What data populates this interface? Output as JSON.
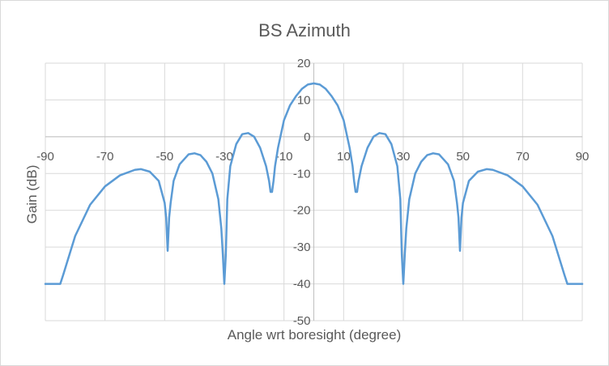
{
  "chart_data": {
    "type": "line",
    "title": "BS Azimuth",
    "xlabel": "Angle wrt boresight (degree)",
    "ylabel": "Gain (dB)",
    "xlim": [
      -90,
      90
    ],
    "ylim": [
      -50,
      20
    ],
    "x_ticks": [
      "-90",
      "-70",
      "-50",
      "-30",
      "-10",
      "10",
      "30",
      "50",
      "70",
      "90"
    ],
    "y_ticks": [
      "20",
      "10",
      "0",
      "-10",
      "-20",
      "-30",
      "-40",
      "-50"
    ],
    "grid": true,
    "legend": "none",
    "series": [
      {
        "color": "#5b9bd5",
        "x": [
          -90,
          -85,
          -84,
          -80,
          -75,
          -70,
          -65,
          -60,
          -58,
          -55,
          -52,
          -50,
          -49.5,
          -49,
          -48.5,
          -48,
          -47,
          -45,
          -42,
          -40,
          -38,
          -36,
          -34,
          -32,
          -31,
          -30.5,
          -30,
          -29.5,
          -29,
          -28,
          -26,
          -24,
          -22,
          -20,
          -18,
          -16,
          -15,
          -14.5,
          -14,
          -13.5,
          -13,
          -12,
          -10,
          -8,
          -6,
          -4,
          -2,
          0,
          2,
          4,
          6,
          8,
          10,
          12,
          13,
          13.5,
          14,
          14.5,
          15,
          16,
          18,
          20,
          22,
          24,
          26,
          28,
          29,
          29.5,
          30,
          30.5,
          31,
          32,
          34,
          36,
          38,
          40,
          42,
          45,
          47,
          48,
          48.5,
          49,
          49.5,
          50,
          52,
          55,
          58,
          60,
          65,
          70,
          75,
          80,
          84,
          85,
          90
        ],
        "y": [
          -40,
          -40,
          -37.5,
          -27,
          -18.5,
          -13.5,
          -10.5,
          -9,
          -8.8,
          -9.5,
          -12,
          -18,
          -22,
          -31,
          -22,
          -18,
          -12,
          -7.5,
          -4.8,
          -4.5,
          -5,
          -6.8,
          -10,
          -17,
          -25,
          -32,
          -40,
          -32,
          -17,
          -8,
          -2,
          0.7,
          1,
          0,
          -3,
          -8,
          -12,
          -15,
          -15,
          -12,
          -8,
          -3,
          4.5,
          8.5,
          11,
          13,
          14.2,
          14.5,
          14.2,
          13,
          11,
          8.5,
          4.5,
          -3,
          -8,
          -12,
          -15,
          -15,
          -12,
          -8,
          -3,
          0,
          1,
          0.7,
          -2,
          -8,
          -17,
          -32,
          -40,
          -32,
          -25,
          -17,
          -10,
          -6.8,
          -5,
          -4.5,
          -4.8,
          -7.5,
          -12,
          -18,
          -22,
          -31,
          -22,
          -18,
          -12,
          -9.5,
          -8.8,
          -9,
          -10.5,
          -13.5,
          -18.5,
          -27,
          -37.5,
          -40,
          -40
        ]
      }
    ]
  }
}
